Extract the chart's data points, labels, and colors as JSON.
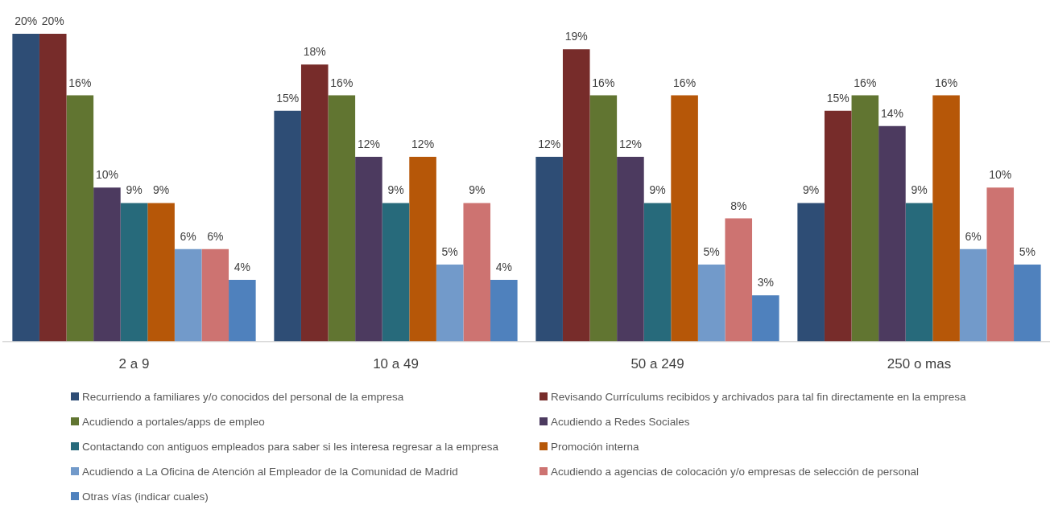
{
  "chart_data": {
    "type": "bar",
    "categories": [
      "2 a 9",
      "10 a 49",
      "50 a 249",
      "250 o mas"
    ],
    "series": [
      {
        "name": "Recurriendo a familiares y/o conocidos del personal de la empresa",
        "color": "#2e4d75",
        "values": [
          20,
          15,
          12,
          9
        ],
        "value_labels": [
          "20%",
          "15%",
          "12%",
          "9%"
        ]
      },
      {
        "name": "Revisando Currículums recibidos y archivados para tal fin directamente en la empresa",
        "color": "#772c2a",
        "values": [
          20,
          18,
          19,
          15
        ],
        "value_labels": [
          "20%",
          "18%",
          "19%",
          "15%"
        ]
      },
      {
        "name": "Acudiendo a portales/apps de empleo",
        "color": "#617531",
        "values": [
          16,
          16,
          16,
          16
        ],
        "value_labels": [
          "16%",
          "16%",
          "16%",
          "16%"
        ]
      },
      {
        "name": "Acudiendo a Redes Sociales",
        "color": "#4c3a5f",
        "values": [
          10,
          12,
          12,
          14
        ],
        "value_labels": [
          "10%",
          "12%",
          "12%",
          "14%"
        ]
      },
      {
        "name": "Contactando con antiguos empleados para saber si les interesa regresar a la empresa",
        "color": "#276a7b",
        "values": [
          9,
          9,
          9,
          9
        ],
        "value_labels": [
          "9%",
          "9%",
          "9%",
          "9%"
        ]
      },
      {
        "name": "Promoción interna",
        "color": "#b65708",
        "values": [
          9,
          12,
          16,
          16
        ],
        "value_labels": [
          "9%",
          "12%",
          "16%",
          "16%"
        ]
      },
      {
        "name": "Acudiendo a La Oficina de Atención al Empleador de la Comunidad de Madrid",
        "color": "#729aca",
        "values": [
          6,
          5,
          5,
          6
        ],
        "value_labels": [
          "6%",
          "5%",
          "5%",
          "6%"
        ]
      },
      {
        "name": "Acudiendo a agencias de colocación y/o empresas de selección de personal",
        "color": "#cd7371",
        "values": [
          6,
          9,
          8,
          10
        ],
        "value_labels": [
          "6%",
          "9%",
          "8%",
          "10%"
        ]
      },
      {
        "name": "Otras vías (indicar cuales)",
        "color": "#4f81bd",
        "values": [
          4,
          4,
          3,
          5
        ],
        "value_labels": [
          "4%",
          "4%",
          "3%",
          "5%"
        ]
      }
    ],
    "tick_labels": "x",
    "grid": false,
    "legend": "bottom"
  }
}
